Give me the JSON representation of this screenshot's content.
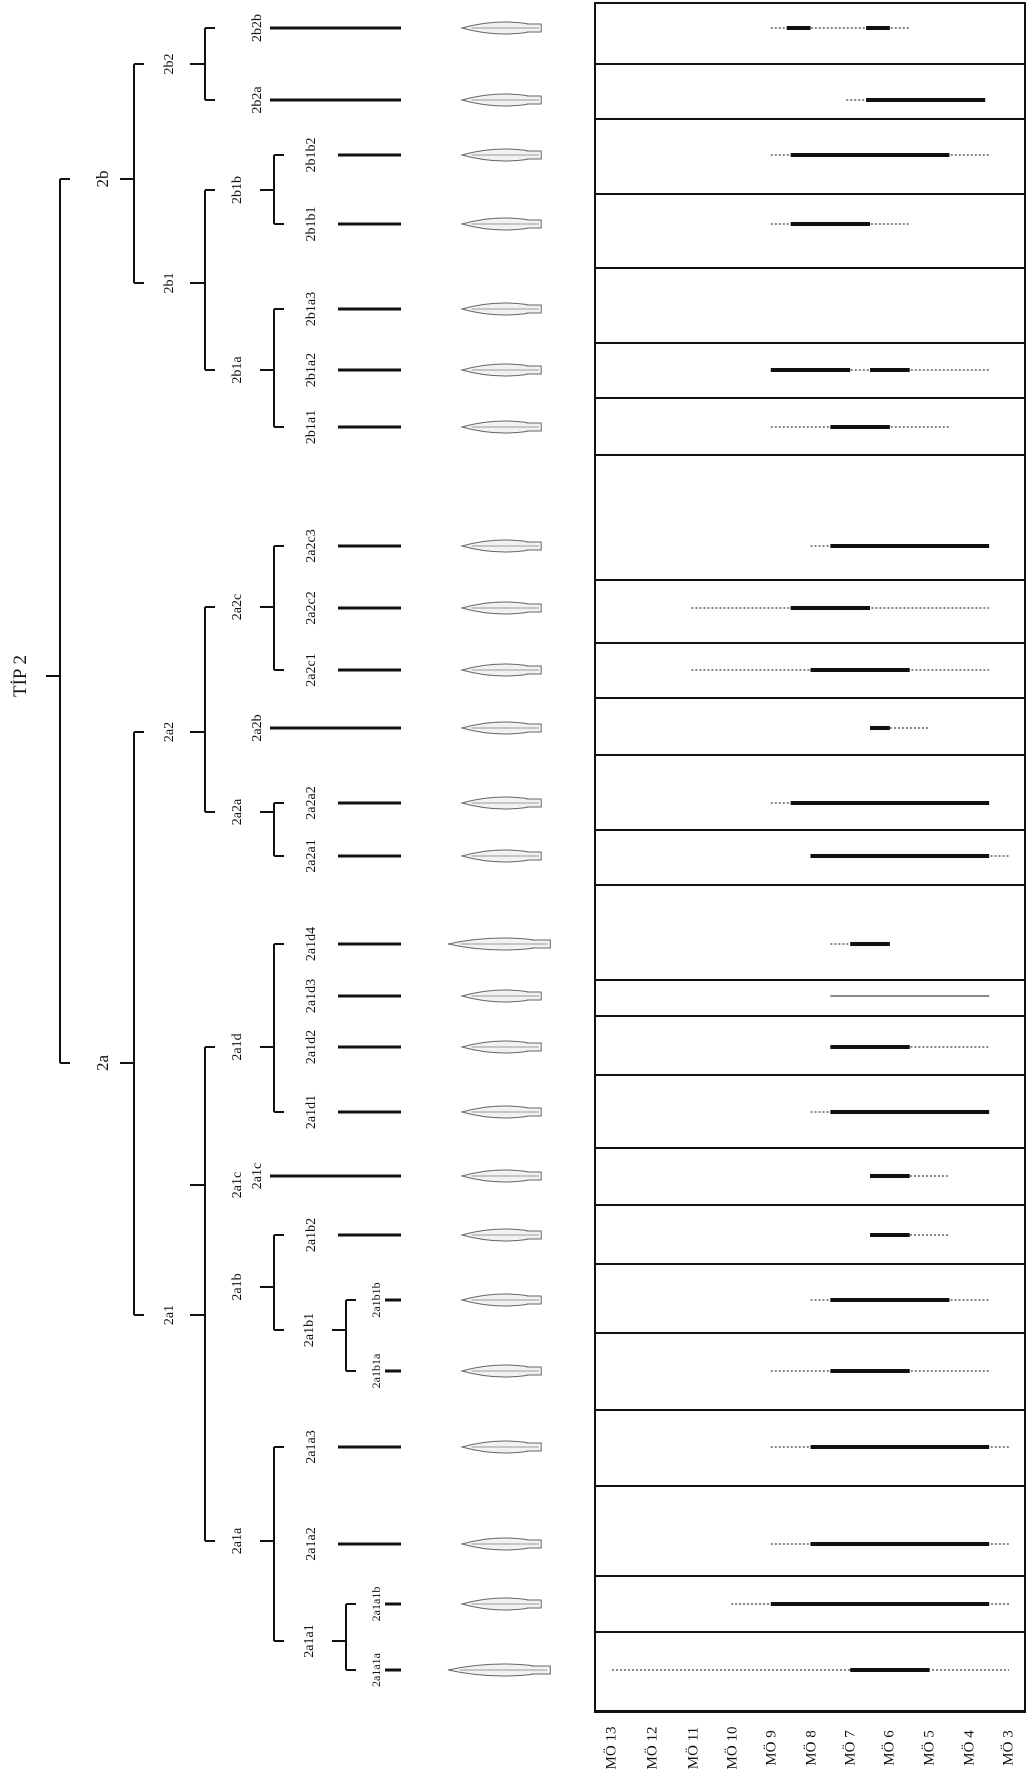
{
  "title": "TİP 2",
  "axis_labels": [
    "MÖ 13",
    "MÖ 12",
    "MÖ 11",
    "MÖ 10",
    "MÖ 9",
    "MÖ 8",
    "MÖ 7",
    "MÖ 6",
    "MÖ 5",
    "MÖ 4",
    "MÖ 3"
  ],
  "node_labels": {
    "n2a": "2a",
    "n2b": "2b",
    "n2a1": "2a1",
    "n2a2": "2a2",
    "n2b1": "2b1",
    "n2b2": "2b2",
    "n2a1a": "2a1a",
    "n2a1b": "2a1b",
    "n2a1c": "2a1c",
    "n2a1d": "2a1d",
    "n2a2a": "2a2a",
    "n2a2b": "2a2b",
    "n2a2c": "2a2c",
    "n2b1a": "2b1a",
    "n2b1b": "2b1b",
    "n2a1a1": "2a1a1",
    "n2a1b1": "2a1b1"
  },
  "leaves": [
    {
      "label": "2b2b"
    },
    {
      "label": "2b2a"
    },
    {
      "label": "2b1b2"
    },
    {
      "label": "2b1b1"
    },
    {
      "label": "2b1a3"
    },
    {
      "label": "2b1a2"
    },
    {
      "label": "2b1a1"
    },
    {
      "label": "2a2c3"
    },
    {
      "label": "2a2c2"
    },
    {
      "label": "2a2c1"
    },
    {
      "label": "2a2b"
    },
    {
      "label": "2a2a2"
    },
    {
      "label": "2a2a1"
    },
    {
      "label": "2a1d4"
    },
    {
      "label": "2a1d3"
    },
    {
      "label": "2a1d2"
    },
    {
      "label": "2a1d1"
    },
    {
      "label": "2a1c"
    },
    {
      "label": "2a1b2"
    },
    {
      "label": "2a1b1b"
    },
    {
      "label": "2a1b1a"
    },
    {
      "label": "2a1a3"
    },
    {
      "label": "2a1a2"
    },
    {
      "label": "2a1a1b"
    },
    {
      "label": "2a1a1a"
    }
  ],
  "chart_data": {
    "type": "range",
    "x_unit": "century BC (MÖ)",
    "x_range": [
      13,
      3
    ],
    "rows": [
      {
        "type": "2b2b",
        "dotted": [
          9,
          5.5
        ],
        "solid": [
          [
            8.6,
            8
          ],
          [
            6.6,
            6
          ]
        ]
      },
      {
        "type": "2b2a",
        "dotted": [
          7.1,
          6.6
        ],
        "solid": [
          [
            6.6,
            3.6
          ]
        ]
      },
      {
        "type": "2b1b2",
        "dotted": [
          9,
          3.5
        ],
        "solid": [
          [
            8.5,
            4.5
          ]
        ]
      },
      {
        "type": "2b1b1",
        "dotted": [
          9,
          5.5
        ],
        "solid": [
          [
            8.5,
            6.5
          ]
        ]
      },
      {
        "type": "2b1a3",
        "dotted": null,
        "solid": []
      },
      {
        "type": "2b1a2",
        "dotted": [
          9,
          3.5
        ],
        "solid": [
          [
            9,
            7
          ],
          [
            6.5,
            5.5
          ]
        ]
      },
      {
        "type": "2b1a1",
        "dotted": [
          9,
          4.5
        ],
        "solid": [
          [
            7.5,
            6
          ]
        ]
      },
      {
        "type": "2a2c3",
        "dotted": [
          8,
          3.5
        ],
        "solid": [
          [
            7.5,
            3.5
          ]
        ]
      },
      {
        "type": "2a2c2",
        "dotted": [
          11,
          3.5
        ],
        "solid": [
          [
            8.5,
            6.5
          ]
        ]
      },
      {
        "type": "2a2c1",
        "dotted": [
          11,
          3.5
        ],
        "solid": [
          [
            8,
            5.5
          ]
        ]
      },
      {
        "type": "2a2b",
        "dotted": [
          6.5,
          5
        ],
        "solid": [
          [
            6.5,
            6
          ]
        ]
      },
      {
        "type": "2a2a2",
        "dotted": [
          9,
          3.5
        ],
        "solid": [
          [
            8.5,
            3.5
          ]
        ]
      },
      {
        "type": "2a2a1",
        "dotted": [
          8,
          3
        ],
        "solid": [
          [
            8,
            3.5
          ]
        ]
      },
      {
        "type": "2a1d4",
        "dotted": [
          7.5,
          6
        ],
        "solid": [
          [
            7,
            6
          ]
        ]
      },
      {
        "type": "2a1d3",
        "dotted": [
          7.5,
          3.5
        ],
        "solid": []
      },
      {
        "type": "2a1d2",
        "dotted": [
          7.5,
          3.5
        ],
        "solid": [
          [
            7.5,
            5.5
          ]
        ]
      },
      {
        "type": "2a1d1",
        "dotted": [
          8,
          3.5
        ],
        "solid": [
          [
            7.5,
            3.5
          ]
        ]
      },
      {
        "type": "2a1c",
        "dotted": [
          6.5,
          4.5
        ],
        "solid": [
          [
            6.5,
            5.5
          ]
        ]
      },
      {
        "type": "2a1b2",
        "dotted": [
          6.5,
          4.5
        ],
        "solid": [
          [
            6.5,
            5.5
          ]
        ]
      },
      {
        "type": "2a1b1b",
        "dotted": [
          8,
          3.5
        ],
        "solid": [
          [
            7.5,
            4.5
          ]
        ]
      },
      {
        "type": "2a1b1a",
        "dotted": [
          9,
          3.5
        ],
        "solid": [
          [
            7.5,
            5.5
          ]
        ]
      },
      {
        "type": "2a1a3",
        "dotted": [
          9,
          3
        ],
        "solid": [
          [
            8,
            3.5
          ]
        ]
      },
      {
        "type": "2a1a2",
        "dotted": [
          9,
          3
        ],
        "solid": [
          [
            8,
            3.5
          ]
        ]
      },
      {
        "type": "2a1a1b",
        "dotted": [
          10,
          3
        ],
        "solid": [
          [
            9,
            3.5
          ]
        ]
      },
      {
        "type": "2a1a1a",
        "dotted": [
          13,
          3
        ],
        "solid": [
          [
            7,
            5
          ]
        ]
      }
    ]
  }
}
